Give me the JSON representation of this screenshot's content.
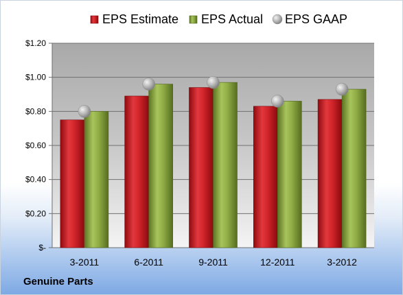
{
  "company": "Genuine Parts",
  "chart_data": {
    "type": "bar",
    "categories": [
      "3-2011",
      "6-2011",
      "9-2011",
      "12-2011",
      "3-2012"
    ],
    "series": [
      {
        "name": "EPS Estimate",
        "type": "bar",
        "color": "#c0151b",
        "values": [
          0.75,
          0.89,
          0.94,
          0.83,
          0.87
        ]
      },
      {
        "name": "EPS Actual",
        "type": "bar",
        "color": "#7f9a3a",
        "values": [
          0.8,
          0.96,
          0.97,
          0.86,
          0.93
        ]
      },
      {
        "name": "EPS GAAP",
        "type": "scatter",
        "color": "#a6a6a6",
        "values": [
          0.8,
          0.96,
          0.97,
          0.86,
          0.93
        ]
      }
    ],
    "ylim": [
      0,
      1.2
    ],
    "yticks": [
      0,
      0.2,
      0.4,
      0.6,
      0.8,
      1.0,
      1.2
    ],
    "ytick_labels": [
      "$-",
      "$0.20",
      "$0.40",
      "$0.60",
      "$0.80",
      "$1.00",
      "$1.20"
    ],
    "grid": true,
    "legend_position": "top"
  }
}
